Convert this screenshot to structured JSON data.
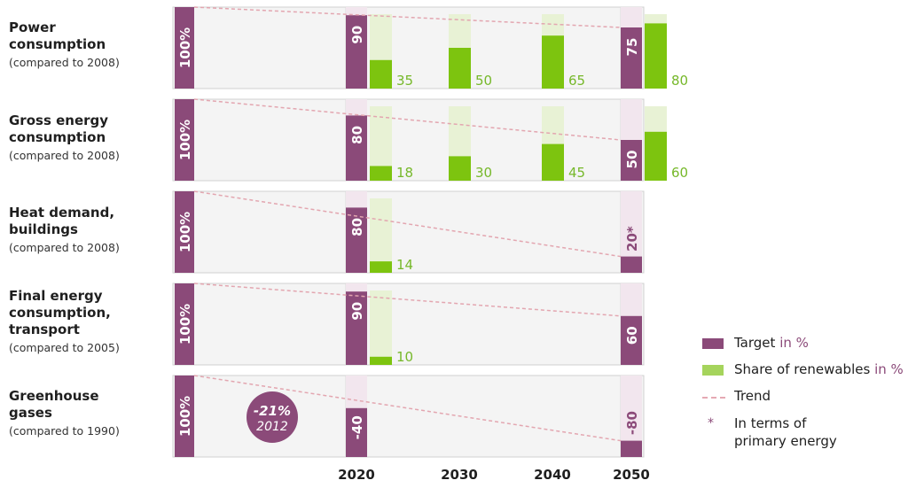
{
  "colors": {
    "target": "#8b4a79",
    "target_light": "#f2e6ee",
    "renew": "#7dc40f",
    "renew_light": "#e8f2d5",
    "trend": "#e3a6b0",
    "panel_bg": "#f4f4f4",
    "panel_border": "#c8c8c8",
    "renew_text": "#76b82a"
  },
  "chart_data": {
    "type": "bar",
    "title": "",
    "x_categories": [
      "2020",
      "2030",
      "2040",
      "2050"
    ],
    "baseline_label": "100%",
    "rows": [
      {
        "title": "Power\nconsumption",
        "subtitle": "(compared to 2008)",
        "target_2020": 90,
        "target_2050": 75,
        "target_labels": {
          "2020": "90",
          "2050": "75"
        },
        "renewables": [
          {
            "year": "2020",
            "value": 35
          },
          {
            "year": "2030",
            "value": 50
          },
          {
            "year": "2040",
            "value": 65
          },
          {
            "year": "2050",
            "value": 80
          }
        ]
      },
      {
        "title": "Gross energy\nconsumption",
        "subtitle": "(compared to 2008)",
        "target_2020": 80,
        "target_2050": 50,
        "target_labels": {
          "2020": "80",
          "2050": "50"
        },
        "renewables": [
          {
            "year": "2020",
            "value": 18
          },
          {
            "year": "2030",
            "value": 30
          },
          {
            "year": "2040",
            "value": 45
          },
          {
            "year": "2050",
            "value": 60
          }
        ]
      },
      {
        "title": "Heat demand,\nbuildings",
        "subtitle": "(compared to 2008)",
        "target_2020": 80,
        "target_2050": 20,
        "target_labels": {
          "2020": "80",
          "2050": "20*"
        },
        "renewables": [
          {
            "year": "2020",
            "value": 14
          }
        ]
      },
      {
        "title": "Final energy\nconsumption,\ntransport",
        "subtitle": "(compared to 2005)",
        "target_2020": 90,
        "target_2050": 60,
        "target_labels": {
          "2020": "90",
          "2050": "60"
        },
        "renewables": [
          {
            "year": "2020",
            "value": 10
          }
        ]
      },
      {
        "title": "Greenhouse\ngases",
        "subtitle": "(compared to 1990)",
        "target_2020": 60,
        "target_2050": 20,
        "target_labels": {
          "2020": "-40",
          "2050": "-80"
        },
        "renewables": [],
        "status_badge": {
          "value": "-21%",
          "year": "2012"
        }
      }
    ]
  },
  "legend": {
    "target_label": "Target",
    "target_unit": "in %",
    "renew_label": "Share of renewables",
    "renew_unit": "in %",
    "trend_label": "Trend",
    "star_symbol": "*",
    "star_label_line1": "In terms of",
    "star_label_line2": "primary energy"
  }
}
